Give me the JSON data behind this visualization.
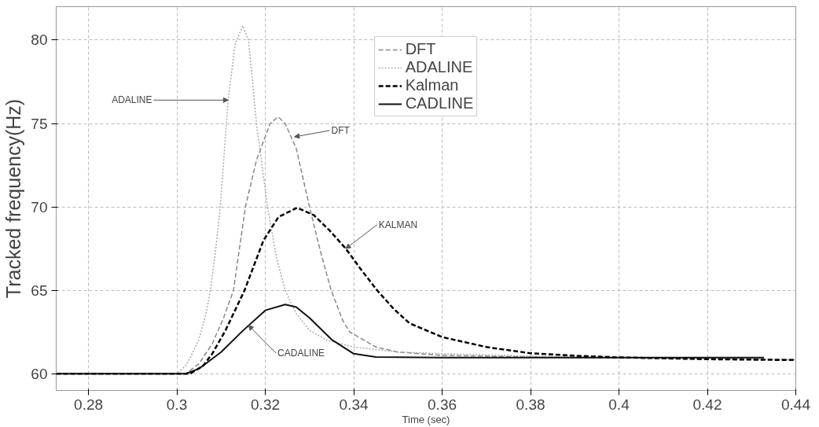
{
  "chart_data": {
    "type": "line",
    "xlabel": "Time (sec)",
    "ylabel": "Tracked frequency(Hz)",
    "xlim": [
      0.2727,
      0.44
    ],
    "ylim": [
      59,
      82
    ],
    "xticks": [
      0.28,
      0.3,
      0.32,
      0.34,
      0.36,
      0.38,
      0.4,
      0.42,
      0.44
    ],
    "yticks": [
      60,
      65,
      70,
      75,
      80
    ],
    "grid": true,
    "legend": "top",
    "series": [
      {
        "name": "DFT",
        "color": "#888888",
        "line_style": "dashed",
        "x": [
          0.2727,
          0.302,
          0.305,
          0.308,
          0.3105,
          0.3128,
          0.3155,
          0.318,
          0.3211,
          0.3229,
          0.3245,
          0.327,
          0.33,
          0.3325,
          0.3349,
          0.3375,
          0.3391,
          0.345,
          0.35,
          0.36,
          0.38,
          0.4,
          0.44
        ],
        "values": [
          60,
          60,
          60.6,
          61.8,
          63.3,
          65,
          70,
          72.8,
          75,
          75.4,
          75,
          73.5,
          70,
          67.3,
          65,
          63.2,
          62.5,
          61.6,
          61.3,
          61.1,
          61.0,
          60.95,
          60.85
        ]
      },
      {
        "name": "ADALINE",
        "color": "#aaaaaa",
        "line_style": "dotted",
        "x": [
          0.2727,
          0.3,
          0.302,
          0.3031,
          0.3049,
          0.3065,
          0.3076,
          0.3088,
          0.3098,
          0.3116,
          0.3132,
          0.3149,
          0.3162,
          0.318,
          0.3205,
          0.3225,
          0.3245,
          0.327,
          0.33,
          0.334,
          0.34,
          0.35,
          0.36,
          0.38,
          0.4,
          0.42,
          0.44
        ],
        "values": [
          60,
          60,
          60.5,
          61,
          62,
          63.5,
          65,
          67.5,
          70,
          76.4,
          79.8,
          80.85,
          80.0,
          75,
          70,
          67,
          65,
          63.6,
          62.6,
          62.0,
          61.6,
          61.3,
          61.2,
          61.05,
          60.95,
          60.9,
          60.85
        ]
      },
      {
        "name": "Kalman",
        "color": "#000000",
        "line_style": "dashed",
        "x": [
          0.2727,
          0.303,
          0.306,
          0.308,
          0.311,
          0.3153,
          0.3196,
          0.323,
          0.3272,
          0.331,
          0.3345,
          0.3382,
          0.3415,
          0.3453,
          0.349,
          0.3526,
          0.36,
          0.37,
          0.38,
          0.39,
          0.4,
          0.42,
          0.44
        ],
        "values": [
          60,
          60,
          60.5,
          61.2,
          62.6,
          65,
          68,
          69.4,
          69.95,
          69.5,
          68.6,
          67.5,
          66.3,
          65,
          63.9,
          63.03,
          62.2,
          61.6,
          61.23,
          61.08,
          60.98,
          60.87,
          60.82
        ]
      },
      {
        "name": "CADLINE",
        "color": "#111111",
        "line_style": "solid",
        "x": [
          0.2727,
          0.302,
          0.305,
          0.31,
          0.315,
          0.32,
          0.3245,
          0.327,
          0.33,
          0.335,
          0.34,
          0.345,
          0.36,
          0.4328
        ],
        "values": [
          60,
          60,
          60.3,
          61.3,
          62.6,
          63.8,
          64.15,
          64.0,
          63.35,
          62.05,
          61.2,
          61.0,
          60.97,
          60.97
        ]
      }
    ],
    "annotations": [
      {
        "text": "ADALINE",
        "x": 0.3116,
        "y": 76.4
      },
      {
        "text": "DFT",
        "x": 0.3266,
        "y": 74.2
      },
      {
        "text": "KALMAN",
        "x": 0.3382,
        "y": 67.5
      },
      {
        "text": "CADALINE",
        "x": 0.3162,
        "y": 62.9
      }
    ]
  }
}
